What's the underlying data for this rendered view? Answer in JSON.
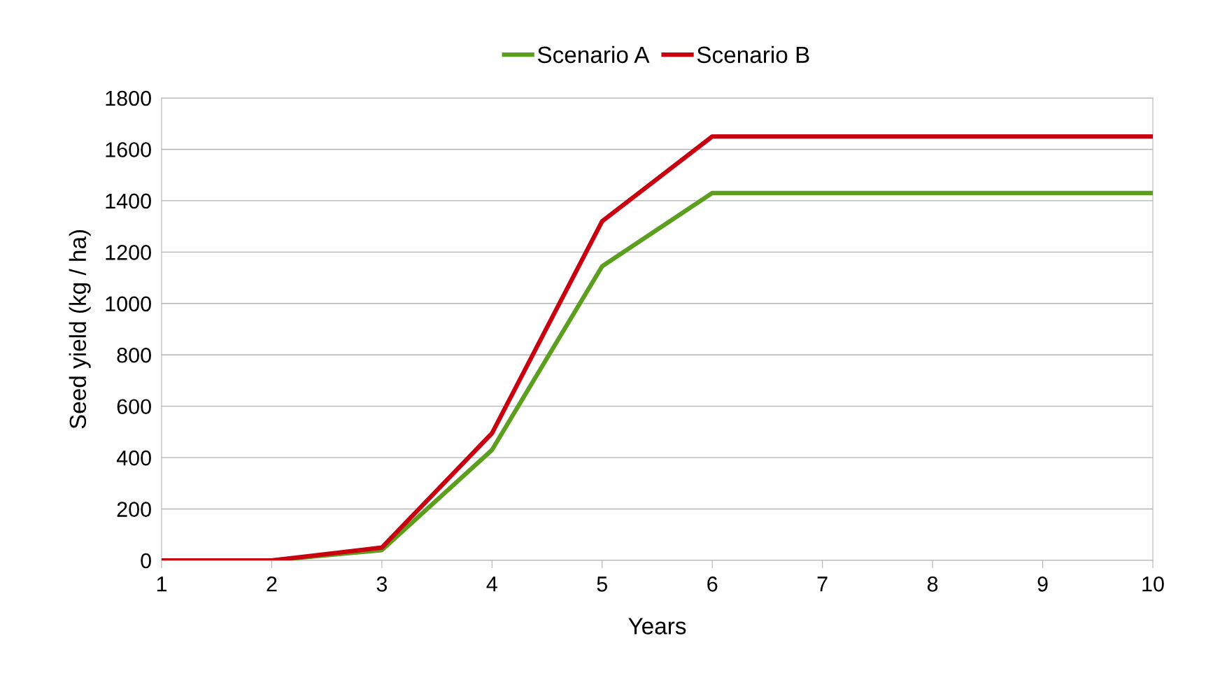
{
  "chart_data": {
    "type": "line",
    "xlabel": "Years",
    "ylabel": "Seed yield (kg / ha)",
    "x": [
      1,
      2,
      3,
      4,
      5,
      6,
      7,
      8,
      9,
      10
    ],
    "series": [
      {
        "name": "Scenario A",
        "color": "#5c9e1e",
        "values": [
          0,
          0,
          40,
          430,
          1145,
          1430,
          1430,
          1430,
          1430,
          1430
        ]
      },
      {
        "name": "Scenario B",
        "color": "#c8000f",
        "values": [
          0,
          0,
          50,
          495,
          1320,
          1650,
          1650,
          1650,
          1650,
          1650
        ]
      }
    ],
    "xlim": [
      1,
      10
    ],
    "xticks": [
      1,
      2,
      3,
      4,
      5,
      6,
      7,
      8,
      9,
      10
    ],
    "ylim": [
      0,
      1800
    ],
    "yticks": [
      0,
      200,
      400,
      600,
      800,
      1000,
      1200,
      1400,
      1600,
      1800
    ],
    "grid": "y",
    "legend": "top",
    "marker": "none",
    "line_style": "solid"
  }
}
